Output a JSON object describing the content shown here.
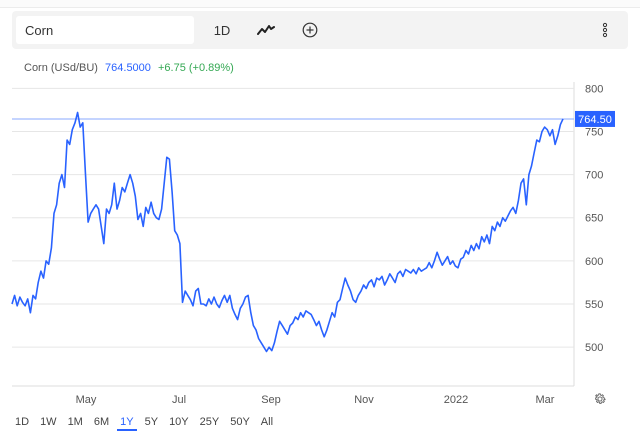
{
  "toolbar": {
    "symbol_value": "Corn",
    "interval_label": "1D",
    "chart_type_icon": "line-chart-icon",
    "compare_icon": "add-circle-icon",
    "more_icon": "more-vertical-icon"
  },
  "legend": {
    "symbol_label": "Corn (USd/BU)",
    "last_price": "764.5000",
    "change": "+6.75 (+0.89%)"
  },
  "price_tag": "764.50",
  "colors": {
    "line": "#2962ff",
    "positive": "#34a853",
    "grid": "#e6e6e6",
    "axis_text": "#555555"
  },
  "range_buttons": [
    "1D",
    "1W",
    "1M",
    "6M",
    "1Y",
    "5Y",
    "10Y",
    "25Y",
    "50Y",
    "All"
  ],
  "active_range": "1Y",
  "settings_icon": "gear-icon",
  "chart_data": {
    "type": "line",
    "title": "",
    "series": [
      {
        "name": "Corn (USd/BU)",
        "points": [
          [
            0,
            550
          ],
          [
            2,
            560
          ],
          [
            4,
            548
          ],
          [
            6,
            558
          ],
          [
            8,
            552
          ],
          [
            10,
            548
          ],
          [
            12,
            556
          ],
          [
            14,
            540
          ],
          [
            16,
            560
          ],
          [
            18,
            556
          ],
          [
            20,
            575
          ],
          [
            22,
            588
          ],
          [
            24,
            580
          ],
          [
            26,
            600
          ],
          [
            28,
            596
          ],
          [
            30,
            615
          ],
          [
            32,
            655
          ],
          [
            34,
            665
          ],
          [
            36,
            690
          ],
          [
            38,
            700
          ],
          [
            40,
            685
          ],
          [
            42,
            740
          ],
          [
            44,
            735
          ],
          [
            46,
            752
          ],
          [
            48,
            760
          ],
          [
            50,
            772
          ],
          [
            52,
            755
          ],
          [
            54,
            760
          ],
          [
            56,
            700
          ],
          [
            58,
            645
          ],
          [
            60,
            655
          ],
          [
            62,
            660
          ],
          [
            64,
            665
          ],
          [
            66,
            660
          ],
          [
            68,
            640
          ],
          [
            70,
            620
          ],
          [
            72,
            660
          ],
          [
            74,
            655
          ],
          [
            76,
            665
          ],
          [
            78,
            690
          ],
          [
            80,
            660
          ],
          [
            82,
            670
          ],
          [
            84,
            685
          ],
          [
            86,
            680
          ],
          [
            88,
            690
          ],
          [
            90,
            700
          ],
          [
            92,
            690
          ],
          [
            94,
            675
          ],
          [
            96,
            648
          ],
          [
            98,
            655
          ],
          [
            100,
            640
          ],
          [
            102,
            662
          ],
          [
            104,
            655
          ],
          [
            106,
            668
          ],
          [
            108,
            655
          ],
          [
            110,
            650
          ],
          [
            112,
            648
          ],
          [
            114,
            660
          ],
          [
            116,
            690
          ],
          [
            118,
            720
          ],
          [
            120,
            718
          ],
          [
            122,
            680
          ],
          [
            124,
            635
          ],
          [
            126,
            630
          ],
          [
            128,
            620
          ],
          [
            130,
            552
          ],
          [
            132,
            565
          ],
          [
            134,
            560
          ],
          [
            136,
            555
          ],
          [
            138,
            548
          ],
          [
            140,
            565
          ],
          [
            142,
            568
          ],
          [
            144,
            550
          ],
          [
            146,
            550
          ],
          [
            148,
            548
          ],
          [
            150,
            556
          ],
          [
            152,
            550
          ],
          [
            154,
            558
          ],
          [
            156,
            550
          ],
          [
            158,
            546
          ],
          [
            160,
            554
          ],
          [
            162,
            560
          ],
          [
            164,
            552
          ],
          [
            166,
            560
          ],
          [
            168,
            545
          ],
          [
            170,
            538
          ],
          [
            172,
            532
          ],
          [
            174,
            545
          ],
          [
            176,
            550
          ],
          [
            178,
            558
          ],
          [
            180,
            560
          ],
          [
            182,
            540
          ],
          [
            184,
            525
          ],
          [
            186,
            520
          ],
          [
            188,
            510
          ],
          [
            190,
            505
          ],
          [
            192,
            500
          ],
          [
            194,
            495
          ],
          [
            196,
            500
          ],
          [
            198,
            496
          ],
          [
            200,
            505
          ],
          [
            202,
            518
          ],
          [
            204,
            530
          ],
          [
            206,
            525
          ],
          [
            208,
            520
          ],
          [
            210,
            515
          ],
          [
            212,
            525
          ],
          [
            214,
            528
          ],
          [
            216,
            535
          ],
          [
            218,
            532
          ],
          [
            220,
            540
          ],
          [
            222,
            535
          ],
          [
            224,
            542
          ],
          [
            226,
            540
          ],
          [
            228,
            538
          ],
          [
            230,
            532
          ],
          [
            232,
            525
          ],
          [
            234,
            530
          ],
          [
            236,
            520
          ],
          [
            238,
            512
          ],
          [
            240,
            520
          ],
          [
            242,
            530
          ],
          [
            244,
            540
          ],
          [
            246,
            535
          ],
          [
            248,
            552
          ],
          [
            250,
            555
          ],
          [
            252,
            568
          ],
          [
            254,
            580
          ],
          [
            256,
            572
          ],
          [
            258,
            565
          ],
          [
            260,
            555
          ],
          [
            262,
            552
          ],
          [
            264,
            560
          ],
          [
            266,
            565
          ],
          [
            268,
            572
          ],
          [
            270,
            568
          ],
          [
            272,
            575
          ],
          [
            274,
            578
          ],
          [
            276,
            570
          ],
          [
            278,
            580
          ],
          [
            280,
            578
          ],
          [
            282,
            582
          ],
          [
            284,
            572
          ],
          [
            286,
            578
          ],
          [
            288,
            585
          ],
          [
            290,
            580
          ],
          [
            292,
            575
          ],
          [
            294,
            585
          ],
          [
            296,
            588
          ],
          [
            298,
            582
          ],
          [
            300,
            590
          ],
          [
            302,
            588
          ],
          [
            304,
            586
          ],
          [
            306,
            590
          ],
          [
            308,
            585
          ],
          [
            310,
            592
          ],
          [
            312,
            588
          ],
          [
            314,
            590
          ],
          [
            316,
            592
          ],
          [
            318,
            598
          ],
          [
            320,
            592
          ],
          [
            322,
            600
          ],
          [
            324,
            610
          ],
          [
            326,
            602
          ],
          [
            328,
            595
          ],
          [
            330,
            600
          ],
          [
            332,
            605
          ],
          [
            334,
            596
          ],
          [
            336,
            600
          ],
          [
            338,
            594
          ],
          [
            340,
            592
          ],
          [
            342,
            602
          ],
          [
            344,
            604
          ],
          [
            346,
            612
          ],
          [
            348,
            608
          ],
          [
            350,
            618
          ],
          [
            352,
            612
          ],
          [
            354,
            620
          ],
          [
            356,
            614
          ],
          [
            358,
            628
          ],
          [
            360,
            622
          ],
          [
            362,
            630
          ],
          [
            364,
            620
          ],
          [
            366,
            640
          ],
          [
            368,
            635
          ],
          [
            370,
            645
          ],
          [
            372,
            640
          ],
          [
            374,
            650
          ],
          [
            376,
            646
          ],
          [
            378,
            652
          ],
          [
            380,
            658
          ],
          [
            382,
            662
          ],
          [
            384,
            655
          ],
          [
            386,
            670
          ],
          [
            388,
            690
          ],
          [
            390,
            695
          ],
          [
            392,
            665
          ],
          [
            394,
            700
          ],
          [
            396,
            710
          ],
          [
            398,
            725
          ],
          [
            400,
            740
          ],
          [
            402,
            738
          ],
          [
            404,
            750
          ],
          [
            406,
            755
          ],
          [
            408,
            752
          ],
          [
            410,
            745
          ],
          [
            412,
            752
          ],
          [
            414,
            735
          ],
          [
            416,
            745
          ],
          [
            418,
            758
          ],
          [
            420,
            764.5
          ]
        ]
      }
    ],
    "x_tick_labels": [
      "May",
      "Jul",
      "Sep",
      "Nov",
      "2022",
      "Mar"
    ],
    "y_ticks": [
      500,
      550,
      600,
      650,
      700,
      750,
      800
    ],
    "ylim": [
      455,
      805
    ],
    "grid": "horizontal",
    "last_value": 764.5
  }
}
